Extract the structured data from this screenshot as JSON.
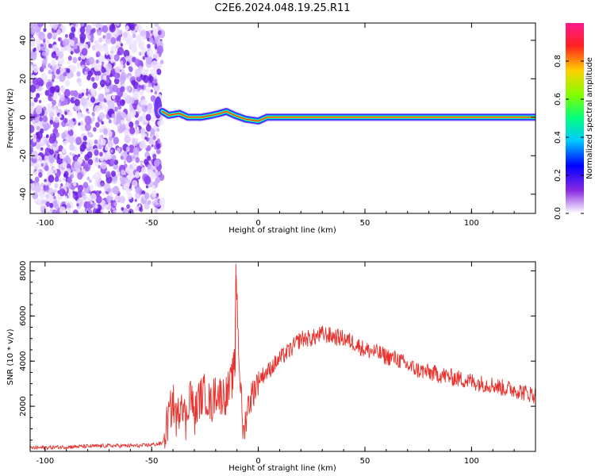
{
  "title": "C2E6.2024.048.19.25.R11",
  "chart_data": [
    {
      "type": "heatmap",
      "xlabel": "Height of straight line (km)",
      "ylabel": "Frequency (Hz)",
      "xlim": [
        -107,
        130
      ],
      "ylim": [
        -50,
        49
      ],
      "x_ticks": [
        -100,
        -50,
        0,
        50,
        100
      ],
      "y_ticks": [
        -40,
        -20,
        0,
        20,
        40
      ],
      "grid": false,
      "colorbar": {
        "label": "Normalized spectral amplitude",
        "range": [
          0.0,
          1.0
        ],
        "ticks": [
          0.0,
          0.2,
          0.4,
          0.6,
          0.8
        ]
      },
      "noise_region": {
        "x_range": [
          -107,
          -45
        ],
        "amplitude": 0.15
      },
      "ridge": [
        {
          "x": -45,
          "y": 3
        },
        {
          "x": -42,
          "y": 1
        },
        {
          "x": -37,
          "y": 2
        },
        {
          "x": -33,
          "y": 0
        },
        {
          "x": -27,
          "y": 0
        },
        {
          "x": -22,
          "y": 1
        },
        {
          "x": -18,
          "y": 2
        },
        {
          "x": -15,
          "y": 3
        },
        {
          "x": -11,
          "y": 1
        },
        {
          "x": -6,
          "y": -1
        },
        {
          "x": 0,
          "y": -2
        },
        {
          "x": 4,
          "y": 0
        },
        {
          "x": 15,
          "y": 0
        },
        {
          "x": 30,
          "y": 0
        },
        {
          "x": 60,
          "y": 0
        },
        {
          "x": 130,
          "y": 0
        }
      ]
    },
    {
      "type": "line",
      "xlabel": "Height of straight line (km)",
      "ylabel": "SNR (10 * v/v)",
      "xlim": [
        -107,
        130
      ],
      "ylim": [
        0,
        8400
      ],
      "x_ticks": [
        -100,
        -50,
        0,
        50,
        100
      ],
      "y_ticks": [
        2000,
        4000,
        6000,
        8000
      ],
      "grid": false,
      "color": "#e8312c",
      "series": [
        {
          "x": [
            -107,
            -90,
            -70,
            -55,
            -45,
            -42,
            -40,
            -38,
            -36,
            -34,
            -32,
            -30,
            -28,
            -25,
            -22,
            -20,
            -18,
            -15,
            -13,
            -11,
            -10.5,
            -9,
            -7,
            -5,
            -3,
            0,
            5,
            10,
            15,
            20,
            25,
            30,
            35,
            40,
            45,
            50,
            55,
            60,
            65,
            70,
            75,
            80,
            85,
            90,
            95,
            100,
            105,
            110,
            115,
            120,
            125,
            130
          ],
          "y": [
            150,
            200,
            250,
            250,
            350,
            1500,
            2200,
            1300,
            2600,
            1200,
            2800,
            1500,
            2300,
            2600,
            2000,
            2700,
            2500,
            2500,
            2900,
            3800,
            8300,
            4000,
            700,
            2000,
            2500,
            3200,
            3600,
            4100,
            4500,
            5000,
            5000,
            5200,
            5100,
            5000,
            4800,
            4500,
            4400,
            4200,
            4100,
            3800,
            3600,
            3500,
            3400,
            3300,
            3200,
            3100,
            3000,
            2950,
            2800,
            2750,
            2600,
            2500
          ]
        }
      ]
    }
  ]
}
